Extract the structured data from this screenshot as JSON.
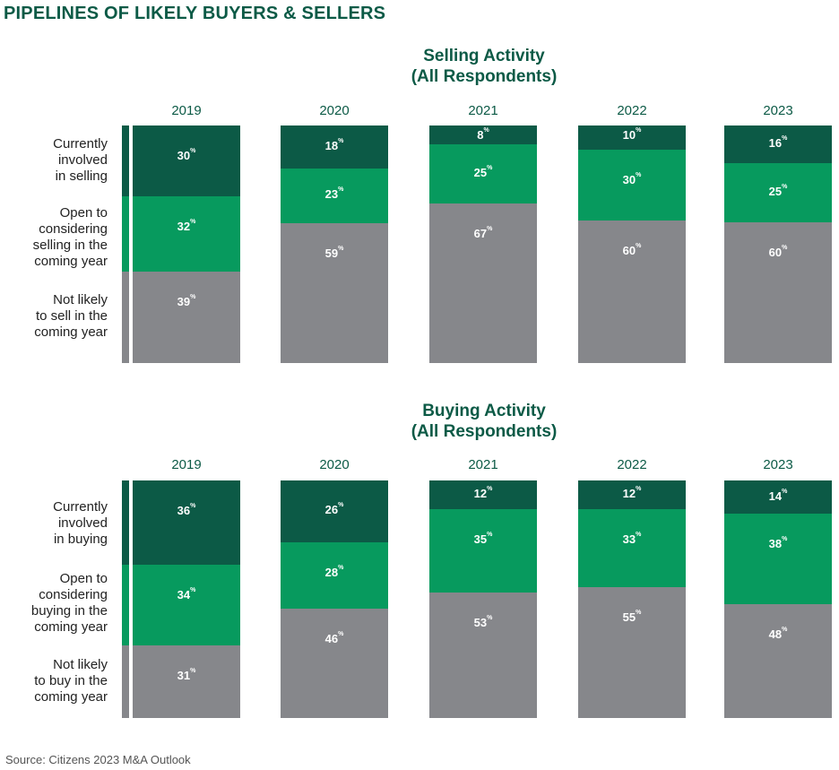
{
  "page_title": "PIPELINES OF LIKELY BUYERS & SELLERS",
  "source": "Source: Citizens 2023 M&A Outlook",
  "colors": {
    "currently": "#0c5a46",
    "open": "#079a5e",
    "not_likely": "#86878b",
    "title": "#0c5a46"
  },
  "percent_sign": "%",
  "chart_data": [
    {
      "type": "bar",
      "stacked": true,
      "title": "Selling Activity\n(All Respondents)",
      "title_lines": [
        "Selling Activity",
        "(All Respondents)"
      ],
      "categories": [
        "2019",
        "2020",
        "2021",
        "2022",
        "2023"
      ],
      "row_labels": [
        [
          "Currently",
          "involved",
          "in selling"
        ],
        [
          "Open to",
          "considering",
          "selling in the",
          "coming year"
        ],
        [
          "Not likely",
          "to sell in the",
          "coming year"
        ]
      ],
      "series": [
        {
          "name": "Currently involved in selling",
          "values": [
            30,
            18,
            8,
            10,
            16
          ]
        },
        {
          "name": "Open to considering selling in the coming year",
          "values": [
            32,
            23,
            25,
            30,
            25
          ]
        },
        {
          "name": "Not likely to sell in the coming year",
          "values": [
            39,
            59,
            67,
            60,
            60
          ]
        }
      ],
      "unit": "%"
    },
    {
      "type": "bar",
      "stacked": true,
      "title": "Buying Activity\n(All Respondents)",
      "title_lines": [
        "Buying Activity",
        "(All Respondents)"
      ],
      "categories": [
        "2019",
        "2020",
        "2021",
        "2022",
        "2023"
      ],
      "row_labels": [
        [
          "Currently",
          "involved",
          "in buying"
        ],
        [
          "Open to",
          "considering",
          "buying in the",
          "coming year"
        ],
        [
          "Not likely",
          "to buy in the",
          "coming year"
        ]
      ],
      "series": [
        {
          "name": "Currently involved in buying",
          "values": [
            36,
            26,
            12,
            12,
            14
          ]
        },
        {
          "name": "Open to considering buying in the coming year",
          "values": [
            34,
            28,
            35,
            33,
            38
          ]
        },
        {
          "name": "Not likely to buy in the coming year",
          "values": [
            31,
            46,
            53,
            55,
            48
          ]
        }
      ],
      "unit": "%"
    }
  ]
}
